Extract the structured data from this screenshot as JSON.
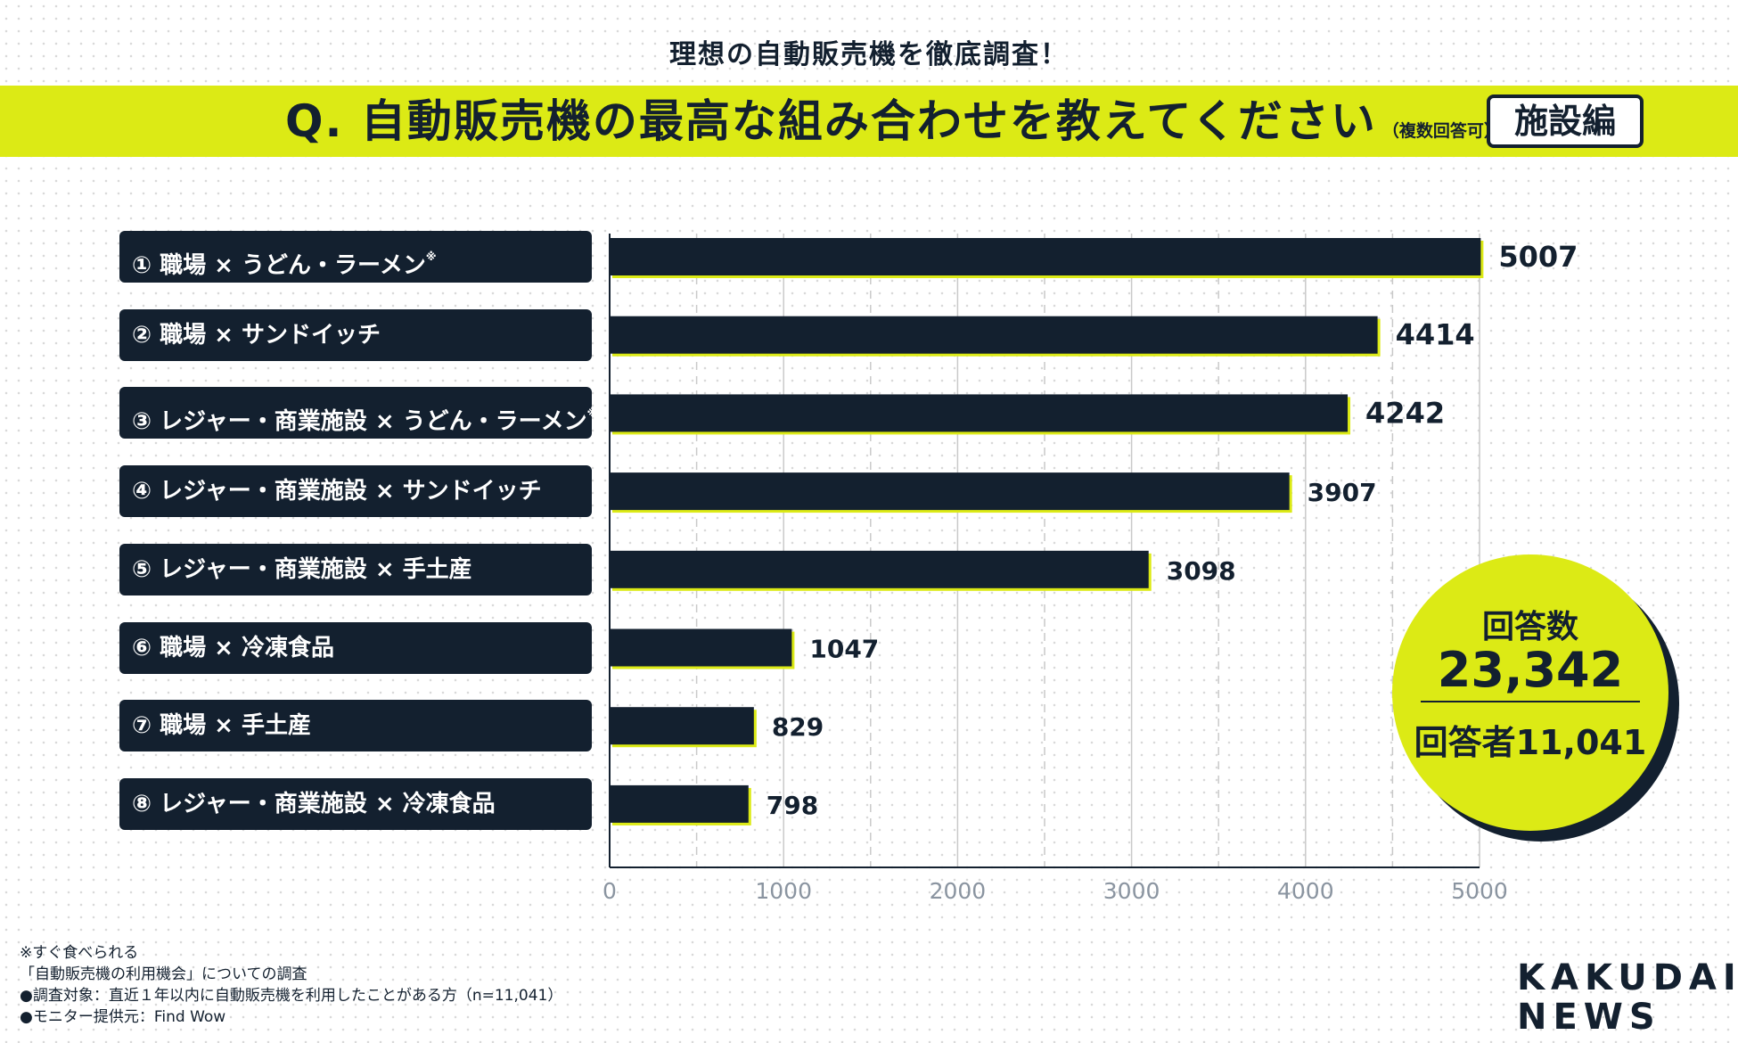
{
  "header": {
    "subtitle": "理想の自動販売機を徹底調査！",
    "question": "Q. 自動販売機の最高な組み合わせを教えてください",
    "question_note": "（複数回答可）",
    "tag": "施設編"
  },
  "chart_data": {
    "type": "bar",
    "orientation": "horizontal",
    "categories": [
      "① 職場 × うどん・ラーメン",
      "② 職場 × サンドイッチ",
      "③ レジャー・商業施設 × うどん・ラーメン",
      "④ レジャー・商業施設 × サンドイッチ",
      "⑤ レジャー・商業施設 × 手土産",
      "⑥ 職場 × 冷凍食品",
      "⑦ 職場 × 手土産",
      "⑧ レジャー・商業施設 × 冷凍食品"
    ],
    "asterisk": [
      true,
      false,
      true,
      false,
      false,
      false,
      false,
      false
    ],
    "asterisk_mark": "※",
    "values": [
      5007,
      4414,
      4242,
      3907,
      3098,
      1047,
      829,
      798
    ],
    "value_labels": [
      "5007",
      "4414",
      "4242",
      "3907",
      "3098",
      "1047",
      "829",
      "798"
    ],
    "xlim": [
      0,
      5000
    ],
    "xticks": [
      0,
      1000,
      2000,
      3000,
      4000,
      5000
    ],
    "xtick_labels": [
      "0",
      "1000",
      "2000",
      "3000",
      "4000",
      "5000"
    ],
    "grid": true,
    "xlabel": "",
    "ylabel": ""
  },
  "badge": {
    "label": "回答数",
    "total": "23,342",
    "respondents": "回答者11,041"
  },
  "footnotes": [
    "※すぐ食べられる",
    "「自動販売機の利用機会」についての調査",
    "●調査対象：直近１年以内に自動販売機を利用したことがある方（n=11,041）",
    "●モニター提供元：Find Wow"
  ],
  "logo": {
    "line1": "KAKUDAI",
    "line2": "NEWS"
  },
  "colors": {
    "accent": "#dcea15",
    "navy": "#13202f",
    "grid": "#c9c9c9",
    "tick": "#8a94a0"
  }
}
